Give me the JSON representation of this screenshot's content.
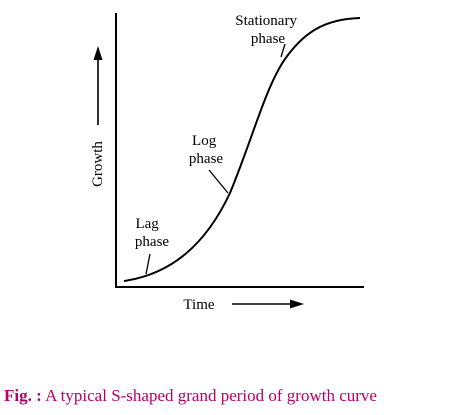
{
  "diagram": {
    "y_axis_label": "Growth",
    "x_axis_label": "Time",
    "phases": {
      "lag": [
        "Lag",
        "phase"
      ],
      "log": [
        "Log",
        "phase"
      ],
      "stationary": [
        "Stationary",
        "phase"
      ]
    }
  },
  "caption": {
    "prefix": "Fig. :",
    "text": " A typical S-shaped grand period of growth curve",
    "color": "#b5006a"
  }
}
